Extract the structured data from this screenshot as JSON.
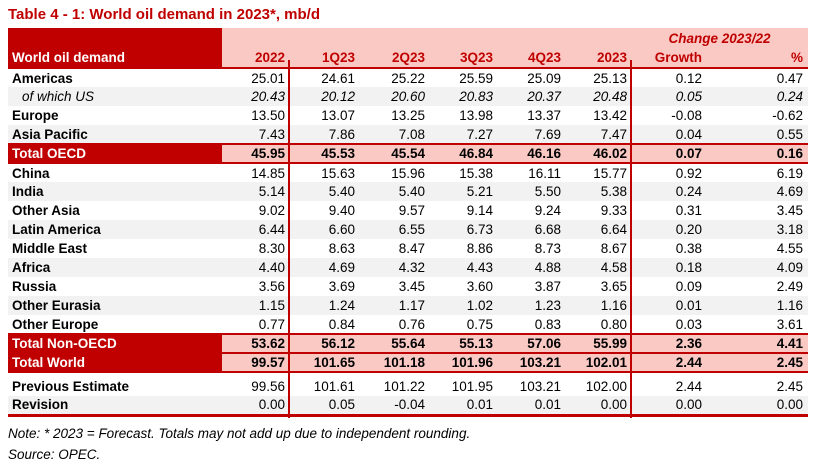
{
  "title": "Table 4 - 1: World oil demand in 2023*, mb/d",
  "colors": {
    "dark_red": "#C00000",
    "pink": "#FAC9C4",
    "stripe": "#F2F2F2"
  },
  "table": {
    "label_header": "World oil demand",
    "change_header": "Change 2023/22",
    "columns": [
      "2022",
      "1Q23",
      "2Q23",
      "3Q23",
      "4Q23",
      "2023",
      "Growth",
      "%"
    ],
    "rows": [
      {
        "label": "Americas",
        "values": [
          "25.01",
          "24.61",
          "25.22",
          "25.59",
          "25.09",
          "25.13",
          "0.12",
          "0.47"
        ]
      },
      {
        "label": "of which US",
        "subitem": true,
        "shade": true,
        "values": [
          "20.43",
          "20.12",
          "20.60",
          "20.83",
          "20.37",
          "20.48",
          "0.05",
          "0.24"
        ]
      },
      {
        "label": "Europe",
        "values": [
          "13.50",
          "13.07",
          "13.25",
          "13.98",
          "13.37",
          "13.42",
          "-0.08",
          "-0.62"
        ]
      },
      {
        "label": "Asia Pacific",
        "shade": true,
        "values": [
          "7.43",
          "7.86",
          "7.08",
          "7.27",
          "7.69",
          "7.47",
          "0.04",
          "0.55"
        ]
      },
      {
        "label": "Total OECD",
        "total": true,
        "rule_top": true,
        "rule_bottom": true,
        "values": [
          "45.95",
          "45.53",
          "45.54",
          "46.84",
          "46.16",
          "46.02",
          "0.07",
          "0.16"
        ]
      },
      {
        "label": "China",
        "values": [
          "14.85",
          "15.63",
          "15.96",
          "15.38",
          "16.11",
          "15.77",
          "0.92",
          "6.19"
        ]
      },
      {
        "label": "India",
        "shade": true,
        "values": [
          "5.14",
          "5.40",
          "5.40",
          "5.21",
          "5.50",
          "5.38",
          "0.24",
          "4.69"
        ]
      },
      {
        "label": "Other Asia",
        "values": [
          "9.02",
          "9.40",
          "9.57",
          "9.14",
          "9.24",
          "9.33",
          "0.31",
          "3.45"
        ]
      },
      {
        "label": "Latin America",
        "shade": true,
        "values": [
          "6.44",
          "6.60",
          "6.55",
          "6.73",
          "6.68",
          "6.64",
          "0.20",
          "3.18"
        ]
      },
      {
        "label": "Middle East",
        "values": [
          "8.30",
          "8.63",
          "8.47",
          "8.86",
          "8.73",
          "8.67",
          "0.38",
          "4.55"
        ]
      },
      {
        "label": "Africa",
        "shade": true,
        "values": [
          "4.40",
          "4.69",
          "4.32",
          "4.43",
          "4.88",
          "4.58",
          "0.18",
          "4.09"
        ]
      },
      {
        "label": "Russia",
        "values": [
          "3.56",
          "3.69",
          "3.45",
          "3.60",
          "3.87",
          "3.65",
          "0.09",
          "2.49"
        ]
      },
      {
        "label": "Other Eurasia",
        "shade": true,
        "values": [
          "1.15",
          "1.24",
          "1.17",
          "1.02",
          "1.23",
          "1.16",
          "0.01",
          "1.16"
        ]
      },
      {
        "label": "Other Europe",
        "values": [
          "0.77",
          "0.84",
          "0.76",
          "0.75",
          "0.83",
          "0.80",
          "0.03",
          "3.61"
        ]
      },
      {
        "label": "Total Non-OECD",
        "total": true,
        "rule_top": true,
        "values": [
          "53.62",
          "56.12",
          "55.64",
          "55.13",
          "57.06",
          "55.99",
          "2.36",
          "4.41"
        ]
      },
      {
        "label": "Total World",
        "total": true,
        "rule_top": true,
        "rule_bottom": true,
        "values": [
          "99.57",
          "101.65",
          "101.18",
          "101.96",
          "103.21",
          "102.01",
          "2.44",
          "2.45"
        ]
      }
    ],
    "estimate_rows": [
      {
        "label": "Previous Estimate",
        "values": [
          "99.56",
          "101.61",
          "101.22",
          "101.95",
          "103.21",
          "102.00",
          "2.44",
          "2.45"
        ]
      },
      {
        "label": "Revision",
        "shade": true,
        "rule_bottom_thick": true,
        "values": [
          "0.00",
          "0.05",
          "-0.04",
          "0.01",
          "0.01",
          "0.00",
          "0.00",
          "0.00"
        ]
      }
    ],
    "note": "Note: * 2023 = Forecast. Totals may not add up due to independent rounding.",
    "source": "Source: OPEC."
  }
}
